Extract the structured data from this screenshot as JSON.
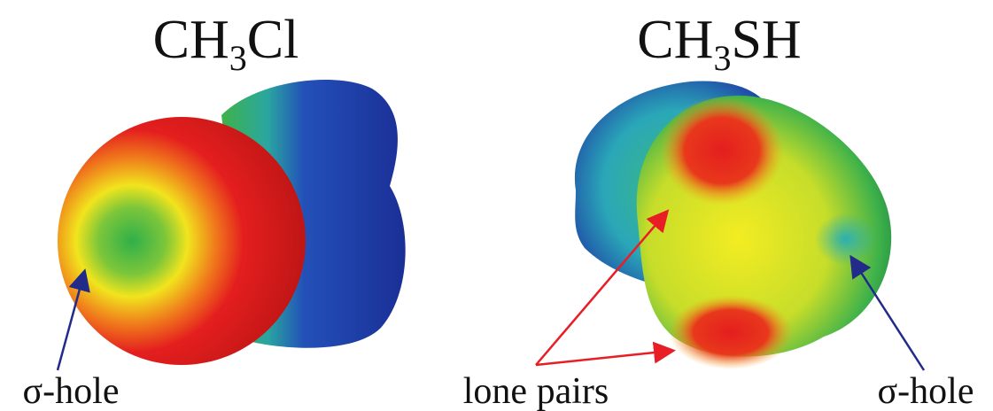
{
  "left_molecule": {
    "title": {
      "base": "CH",
      "subscript": "3",
      "rest": "Cl"
    },
    "label": "σ-hole"
  },
  "right_molecule": {
    "title": {
      "base": "CH",
      "subscript": "3",
      "rest": "SH"
    },
    "lone_pairs_label": "lone pairs",
    "label": "σ-hole"
  }
}
